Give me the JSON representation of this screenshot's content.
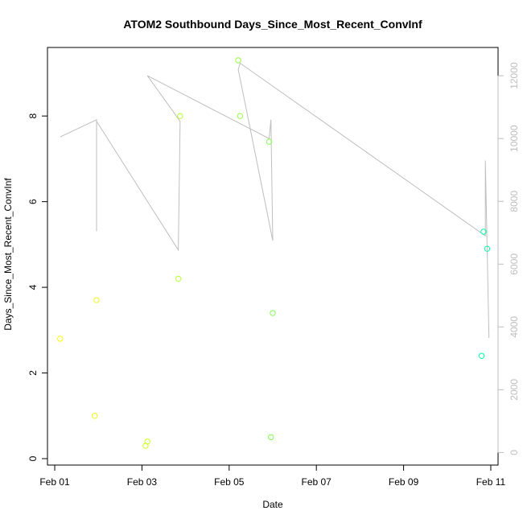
{
  "chart_data": {
    "type": "scatter",
    "title": "ATOM2 Southbound Days_Since_Most_Recent_ConvInf",
    "xlabel": "Date",
    "ylabel": "Days_Since_Most_Recent_ConvInf",
    "x_axis_type": "date",
    "xlim": [
      "2023-01-31T20:00",
      "2023-02-11T04:00"
    ],
    "x_ticks": [
      {
        "value": "2023-02-01",
        "label": "Feb 01"
      },
      {
        "value": "2023-02-03",
        "label": "Feb 03"
      },
      {
        "value": "2023-02-05",
        "label": "Feb 05"
      },
      {
        "value": "2023-02-07",
        "label": "Feb 07"
      },
      {
        "value": "2023-02-09",
        "label": "Feb 09"
      },
      {
        "value": "2023-02-11",
        "label": "Feb 11"
      }
    ],
    "ylim": [
      -0.15,
      9.6
    ],
    "y_ticks": [
      0,
      2,
      4,
      6,
      8
    ],
    "y2lim": [
      -400,
      12900
    ],
    "y2_ticks": [
      0,
      2000,
      4000,
      6000,
      8000,
      10000,
      12000
    ],
    "grid": false,
    "legend": "none",
    "point_color_scale": [
      "#ffff00",
      "#00ffa0"
    ],
    "series": [
      {
        "marker": "open-circle",
        "axis": "left",
        "points": [
          {
            "x": "2023-02-01T03:00",
            "y": 2.8
          },
          {
            "x": "2023-02-01T22:00",
            "y": 1.0
          },
          {
            "x": "2023-02-01T23:00",
            "y": 3.7
          },
          {
            "x": "2023-02-03T02:00",
            "y": 0.3
          },
          {
            "x": "2023-02-03T03:00",
            "y": 0.4
          },
          {
            "x": "2023-02-03T20:00",
            "y": 4.2
          },
          {
            "x": "2023-02-03T21:00",
            "y": 8.0
          },
          {
            "x": "2023-02-05T05:00",
            "y": 9.3
          },
          {
            "x": "2023-02-05T06:00",
            "y": 8.0
          },
          {
            "x": "2023-02-05T22:00",
            "y": 7.4
          },
          {
            "x": "2023-02-05T23:00",
            "y": 0.5
          },
          {
            "x": "2023-02-06T00:00",
            "y": 3.4
          },
          {
            "x": "2023-02-10T19:00",
            "y": 2.4
          },
          {
            "x": "2023-02-10T20:00",
            "y": 5.3
          },
          {
            "x": "2023-02-10T22:00",
            "y": 4.9
          }
        ]
      },
      {
        "marker": "line",
        "axis": "right",
        "color": "#bebebe",
        "points": [
          {
            "x": "2023-02-01T03:00",
            "y": 10050
          },
          {
            "x": "2023-02-01T23:00",
            "y": 10600
          },
          {
            "x": "2023-02-01T23:00",
            "y": 7050
          },
          {
            "x": "2023-02-01T23:00",
            "y": 10550
          },
          {
            "x": "2023-02-03T20:00",
            "y": 6450
          },
          {
            "x": "2023-02-03T21:00",
            "y": 10450
          },
          {
            "x": "2023-02-03T21:00",
            "y": 10550
          },
          {
            "x": "2023-02-03T03:00",
            "y": 12000
          },
          {
            "x": "2023-02-05T22:00",
            "y": 10000
          },
          {
            "x": "2023-02-05T23:00",
            "y": 10600
          },
          {
            "x": "2023-02-06T00:00",
            "y": 6750
          },
          {
            "x": "2023-02-05T05:00",
            "y": 12200
          },
          {
            "x": "2023-02-05T06:00",
            "y": 12400
          },
          {
            "x": "2023-02-10T21:00",
            "y": 6900
          },
          {
            "x": "2023-02-10T21:00",
            "y": 9300
          },
          {
            "x": "2023-02-10T23:00",
            "y": 3650
          }
        ]
      }
    ]
  }
}
